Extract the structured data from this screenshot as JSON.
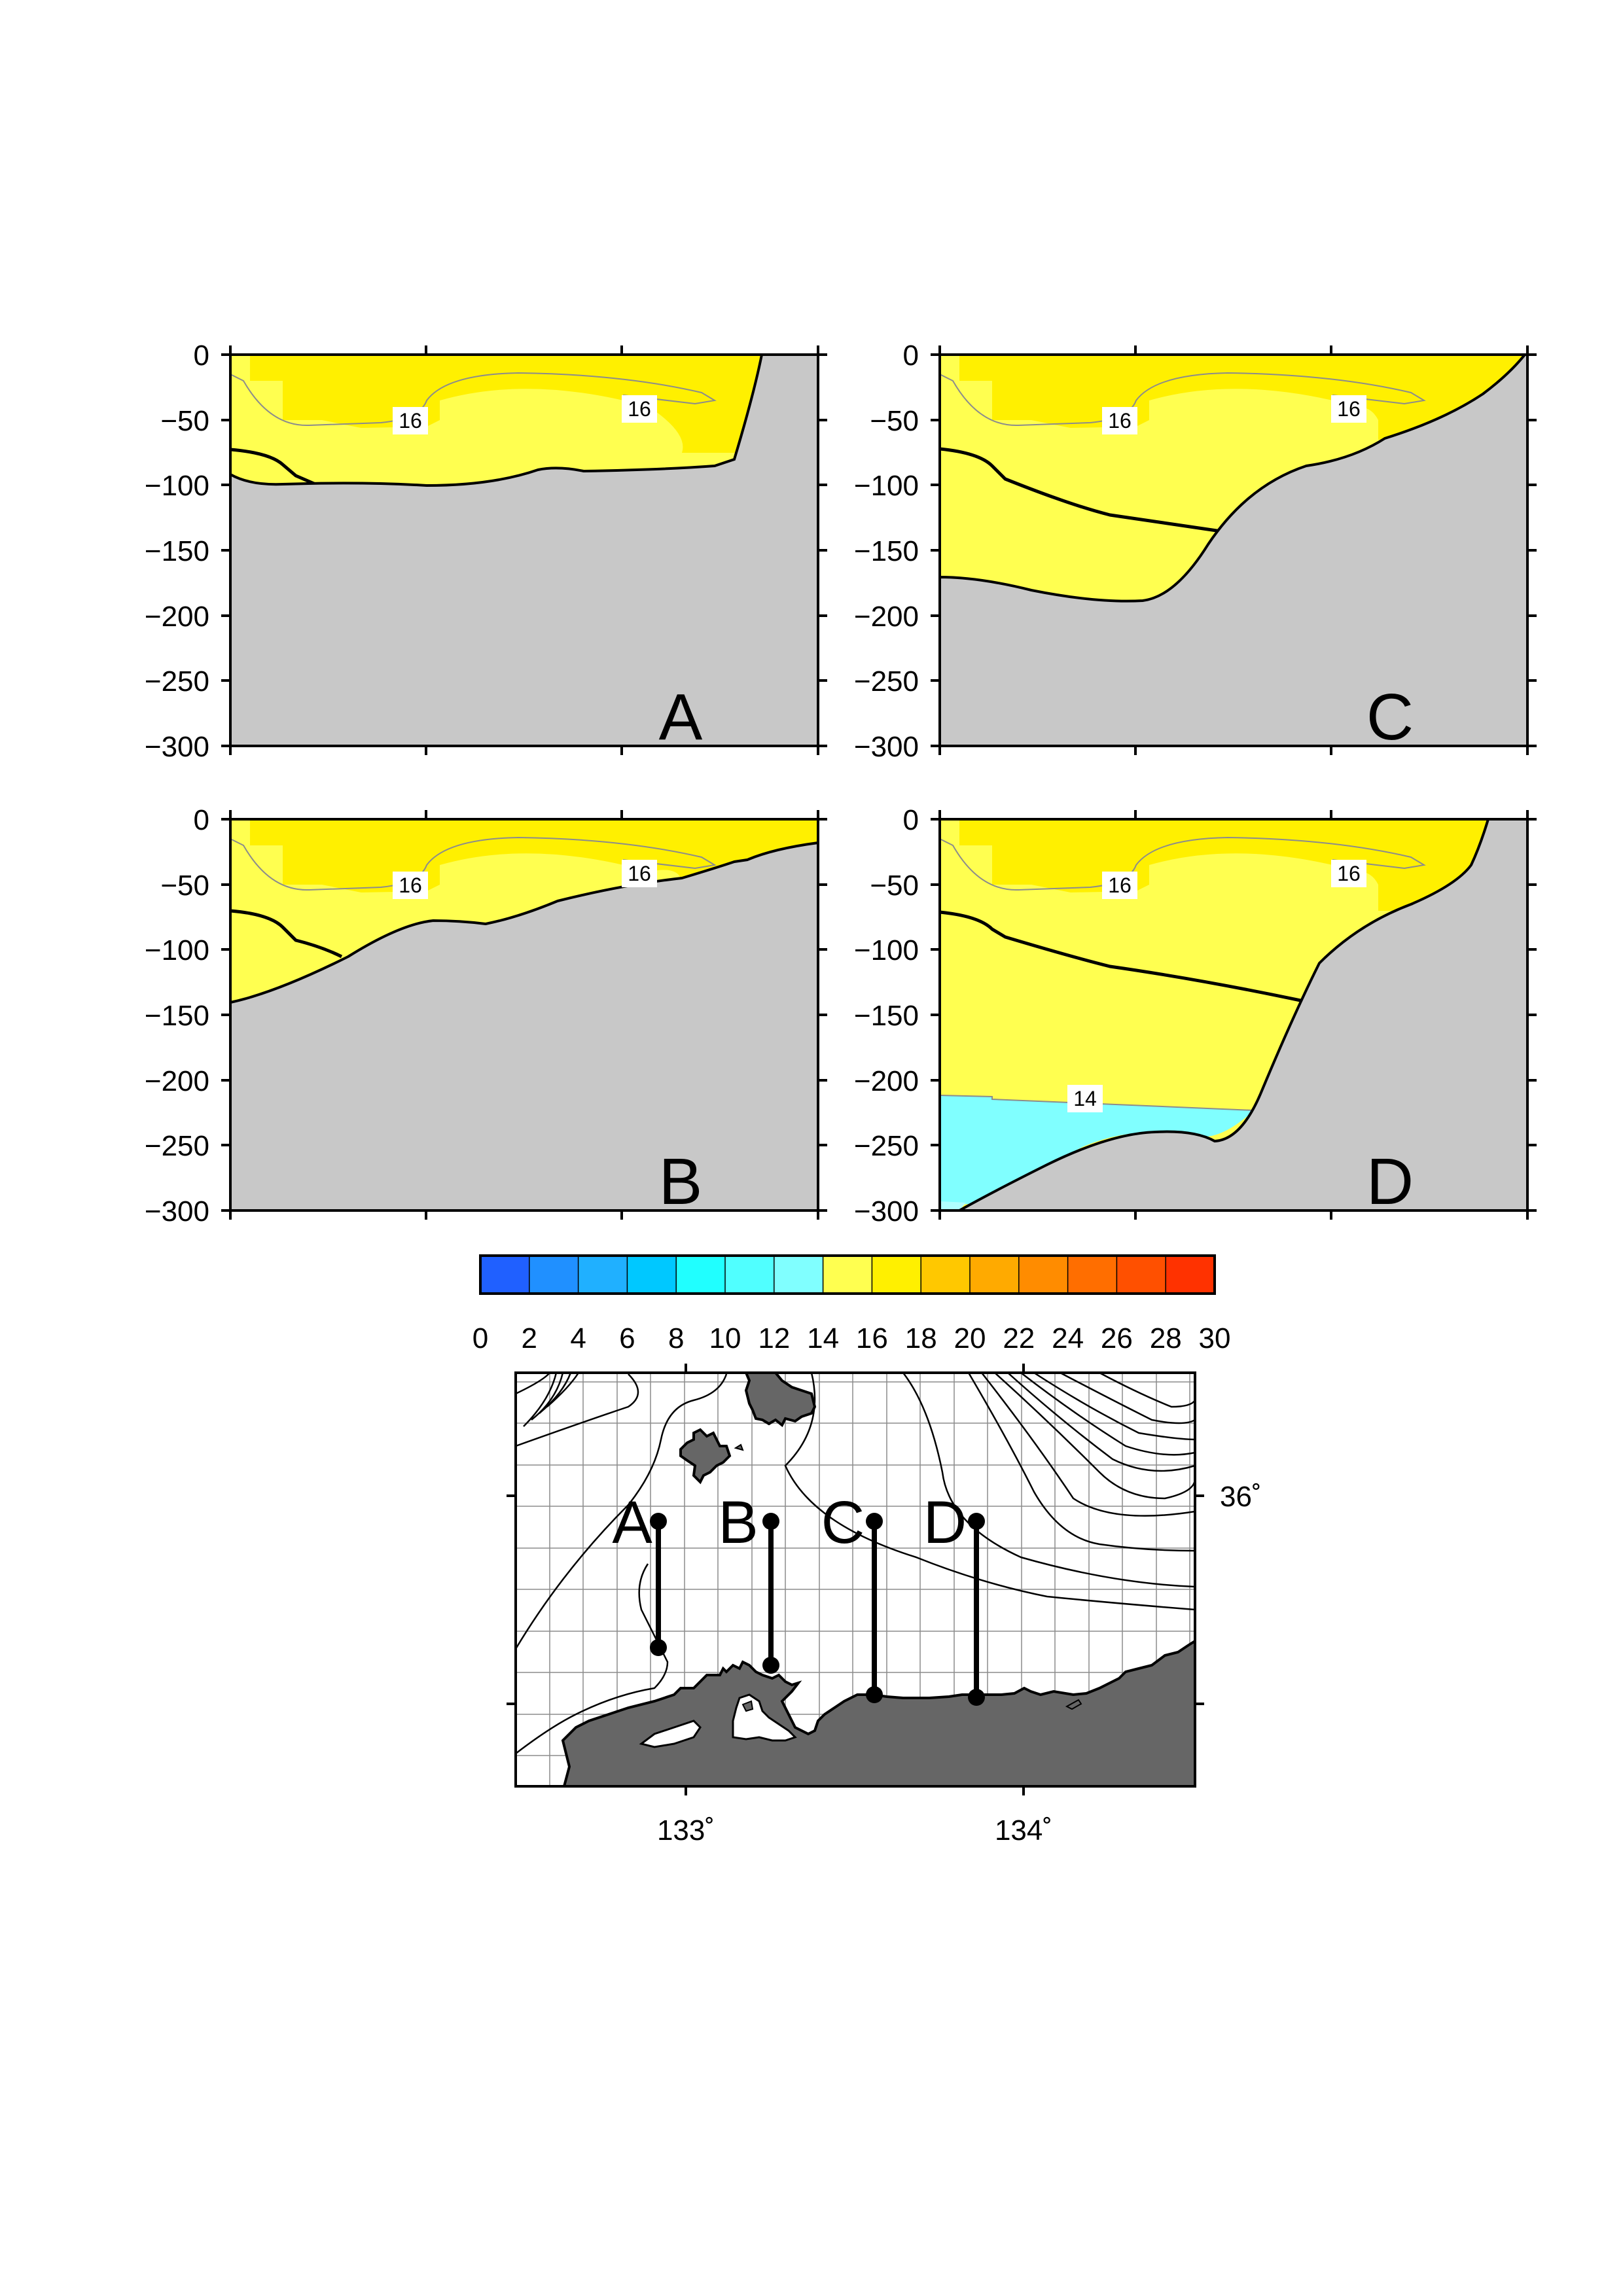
{
  "figure": {
    "colors": {
      "ground": "#c8c8c8",
      "land": "#666666",
      "surface_layer": "#fff000",
      "main_layer": "#ffff50",
      "cold_layer": "#80ffff",
      "deep_layer": "#b0ffff",
      "contour_thin": "#8c8c8c"
    },
    "colorbar": {
      "ticks": [
        "0",
        "2",
        "4",
        "6",
        "8",
        "10",
        "12",
        "14",
        "16",
        "18",
        "20",
        "22",
        "24",
        "26",
        "28",
        "30"
      ],
      "colors": [
        "#2060ff",
        "#2090ff",
        "#20b0ff",
        "#00c8ff",
        "#20ffff",
        "#50ffff",
        "#80ffff",
        "#ffff50",
        "#fff000",
        "#ffc800",
        "#ffaa00",
        "#ff8c00",
        "#ff6e00",
        "#ff5000",
        "#ff3200"
      ]
    },
    "map": {
      "lon_labels": [
        "133˚",
        "134˚"
      ],
      "lat_labels": [
        "36˚"
      ]
    }
  },
  "chart_data": [
    {
      "type": "contour-section",
      "panel": "A",
      "y_ticks": [
        "0",
        "−50",
        "−100",
        "−150",
        "−200",
        "−250",
        "−300"
      ],
      "ylim": [
        -300,
        0
      ],
      "contour_labels": [
        {
          "text": "16",
          "x": 0.31,
          "y": -50
        },
        {
          "text": "16",
          "x": 0.7,
          "y": -41
        }
      ]
    },
    {
      "type": "contour-section",
      "panel": "B",
      "y_ticks": [
        "0",
        "−50",
        "−100",
        "−150",
        "−200",
        "−250",
        "−300"
      ],
      "ylim": [
        -300,
        0
      ],
      "contour_labels": [
        {
          "text": "16",
          "x": 0.31,
          "y": -50
        },
        {
          "text": "16",
          "x": 0.7,
          "y": -41
        }
      ]
    },
    {
      "type": "contour-section",
      "panel": "C",
      "y_ticks": [
        "0",
        "−50",
        "−100",
        "−150",
        "−200",
        "−250",
        "−300"
      ],
      "ylim": [
        -300,
        0
      ],
      "contour_labels": [
        {
          "text": "16",
          "x": 0.31,
          "y": -50
        },
        {
          "text": "16",
          "x": 0.7,
          "y": -41
        }
      ]
    },
    {
      "type": "contour-section",
      "panel": "D",
      "y_ticks": [
        "0",
        "−50",
        "−100",
        "−150",
        "−200",
        "−250",
        "−300"
      ],
      "ylim": [
        -300,
        0
      ],
      "contour_labels": [
        {
          "text": "16",
          "x": 0.31,
          "y": -50
        },
        {
          "text": "16",
          "x": 0.7,
          "y": -41
        },
        {
          "text": "14",
          "x": 0.25,
          "y": -216
        }
      ]
    }
  ]
}
